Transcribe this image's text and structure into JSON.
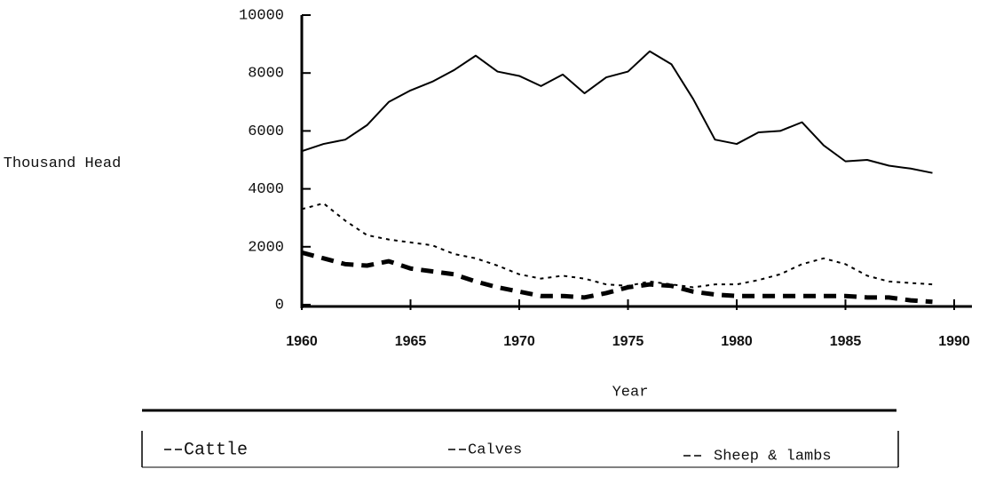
{
  "chart_data": {
    "type": "line",
    "x_label": "Year",
    "y_label": "Thousand Head",
    "x": [
      1960,
      1961,
      1962,
      1963,
      1964,
      1965,
      1966,
      1967,
      1968,
      1969,
      1970,
      1971,
      1972,
      1973,
      1974,
      1975,
      1976,
      1977,
      1978,
      1979,
      1980,
      1981,
      1982,
      1983,
      1984,
      1985,
      1986,
      1987,
      1988,
      1989
    ],
    "series": [
      {
        "name": "Cattle",
        "color": "#000000",
        "line_style": "solid",
        "values": [
          5300,
          5550,
          5700,
          6200,
          7000,
          7400,
          7700,
          8100,
          8600,
          8050,
          7900,
          7550,
          7950,
          7300,
          7850,
          8050,
          8750,
          8300,
          7100,
          5700,
          5550,
          5950,
          6000,
          6300,
          5500,
          4950,
          5000,
          4800,
          4700,
          4550
        ]
      },
      {
        "name": "Calves",
        "color": "#000000",
        "line_style": "dotted",
        "values": [
          3300,
          3500,
          2900,
          2400,
          2250,
          2150,
          2050,
          1750,
          1600,
          1350,
          1050,
          900,
          1000,
          900,
          700,
          650,
          800,
          700,
          600,
          700,
          700,
          850,
          1050,
          1400,
          1600,
          1400,
          1000,
          800,
          750,
          700
        ]
      },
      {
        "name": "Sheep & lambs",
        "color": "#000000",
        "line_style": "dashed",
        "values": [
          1800,
          1600,
          1400,
          1350,
          1500,
          1250,
          1150,
          1050,
          800,
          600,
          450,
          300,
          300,
          250,
          400,
          600,
          700,
          650,
          450,
          350,
          300,
          300,
          300,
          300,
          300,
          300,
          250,
          250,
          150,
          100
        ]
      }
    ],
    "xlim": [
      1960,
      1990
    ],
    "xticks": [
      1960,
      1965,
      1970,
      1975,
      1980,
      1985,
      1990
    ],
    "ylim": [
      0,
      10000
    ],
    "yticks": [
      0,
      2000,
      4000,
      6000,
      8000,
      10000
    ],
    "grid": false
  }
}
